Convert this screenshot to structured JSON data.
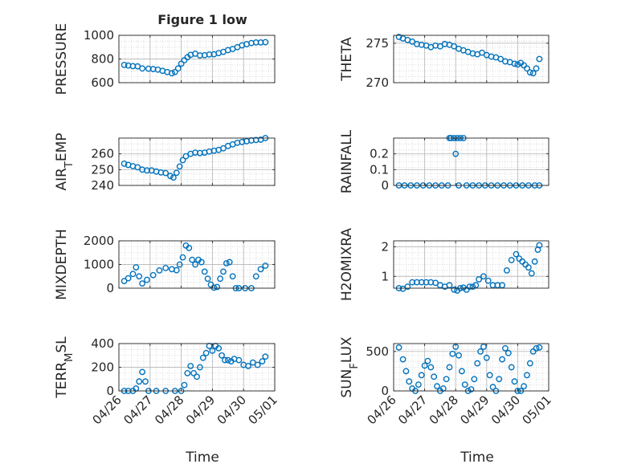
{
  "figure": {
    "title": "Figure 1 low",
    "xlabel": "Time",
    "x_ticks": [
      "04/26",
      "04/27",
      "04/28",
      "04/29",
      "04/30",
      "05/01"
    ],
    "marker_color": "#0072BD"
  },
  "chart_data": [
    {
      "type": "scatter",
      "title": "Figure 1 low",
      "xlabel": "",
      "ylabel": "PRESSURE",
      "xlim": [
        0,
        5
      ],
      "ylim": [
        600,
        1000
      ],
      "yticks": [
        600,
        800,
        1000
      ],
      "grid": true,
      "series": [
        {
          "x": [
            0.17,
            0.3,
            0.45,
            0.6,
            0.75,
            0.95,
            1.1,
            1.25,
            1.4,
            1.55,
            1.7,
            1.8,
            1.9,
            2.0,
            2.1,
            2.2,
            2.3,
            2.45,
            2.6,
            2.75,
            2.9,
            3.05,
            3.2,
            3.35,
            3.5,
            3.65,
            3.8,
            3.95,
            4.1,
            4.25,
            4.4,
            4.55,
            4.7
          ],
          "y": [
            750,
            745,
            740,
            738,
            720,
            718,
            715,
            710,
            700,
            690,
            680,
            690,
            720,
            760,
            790,
            815,
            835,
            845,
            830,
            832,
            838,
            840,
            850,
            860,
            875,
            885,
            900,
            915,
            925,
            935,
            940,
            940,
            942
          ]
        }
      ]
    },
    {
      "type": "scatter",
      "title": "",
      "xlabel": "",
      "ylabel": "THETA",
      "xlim": [
        0,
        5
      ],
      "ylim": [
        270,
        276
      ],
      "yticks": [
        270,
        275
      ],
      "grid": true,
      "series": [
        {
          "x": [
            0.17,
            0.3,
            0.45,
            0.6,
            0.75,
            0.9,
            1.05,
            1.2,
            1.35,
            1.5,
            1.65,
            1.8,
            1.95,
            2.1,
            2.25,
            2.4,
            2.55,
            2.7,
            2.85,
            3.0,
            3.15,
            3.3,
            3.45,
            3.6,
            3.75,
            3.9,
            4.0,
            4.1,
            4.2,
            4.3,
            4.4,
            4.5,
            4.6,
            4.7
          ],
          "y": [
            275.8,
            275.6,
            275.4,
            275.2,
            274.9,
            274.8,
            274.7,
            274.5,
            274.7,
            274.6,
            274.9,
            274.8,
            274.6,
            274.3,
            274.1,
            273.9,
            273.7,
            273.6,
            273.8,
            273.5,
            273.3,
            273.2,
            273.0,
            272.7,
            272.6,
            272.4,
            272.3,
            272.5,
            272.2,
            271.8,
            271.3,
            271.2,
            271.8,
            273.0
          ]
        }
      ]
    },
    {
      "type": "scatter",
      "title": "",
      "xlabel": "",
      "ylabel": "AIR_TEMP",
      "xlim": [
        0,
        5
      ],
      "ylim": [
        240,
        270
      ],
      "yticks": [
        240,
        250,
        260
      ],
      "grid": true,
      "series": [
        {
          "x": [
            0.17,
            0.3,
            0.45,
            0.6,
            0.75,
            0.9,
            1.05,
            1.2,
            1.35,
            1.5,
            1.65,
            1.75,
            1.85,
            1.95,
            2.05,
            2.15,
            2.3,
            2.45,
            2.6,
            2.75,
            2.9,
            3.05,
            3.2,
            3.35,
            3.5,
            3.65,
            3.8,
            3.95,
            4.1,
            4.25,
            4.4,
            4.55,
            4.7
          ],
          "y": [
            253.8,
            253.0,
            252.2,
            251.5,
            250.0,
            249.5,
            249.5,
            248.8,
            248.2,
            247.8,
            246.0,
            245.0,
            248.0,
            252.0,
            256.0,
            258.5,
            260.0,
            260.8,
            260.5,
            260.8,
            261.5,
            262.0,
            262.5,
            263.5,
            265.0,
            266.0,
            267.0,
            267.5,
            268.0,
            268.5,
            268.8,
            269.0,
            270.0
          ]
        }
      ]
    },
    {
      "type": "scatter",
      "title": "",
      "xlabel": "",
      "ylabel": "RAINFALL",
      "xlim": [
        0,
        5
      ],
      "ylim": [
        0,
        0.3
      ],
      "yticks": [
        0,
        0.1,
        0.2
      ],
      "grid": true,
      "series": [
        {
          "x": [
            0.17,
            0.35,
            0.55,
            0.75,
            0.95,
            1.15,
            1.35,
            1.55,
            1.75,
            1.8,
            1.85,
            1.95,
            2.0,
            2.05,
            2.1,
            2.15,
            2.25,
            2.35,
            2.55,
            2.75,
            2.95,
            3.15,
            3.35,
            3.55,
            3.75,
            3.95,
            4.15,
            4.35,
            4.55,
            4.7
          ],
          "y": [
            0,
            0,
            0,
            0,
            0,
            0,
            0,
            0,
            0,
            0.3,
            0.3,
            0.3,
            0.2,
            0.3,
            0,
            0.3,
            0.3,
            0,
            0,
            0,
            0,
            0,
            0,
            0,
            0,
            0,
            0,
            0,
            0,
            0
          ]
        }
      ]
    },
    {
      "type": "scatter",
      "title": "",
      "xlabel": "",
      "ylabel": "MIXDEPTH",
      "xlim": [
        0,
        5
      ],
      "ylim": [
        0,
        2000
      ],
      "yticks": [
        0,
        1000,
        2000
      ],
      "grid": true,
      "series": [
        {
          "x": [
            0.17,
            0.3,
            0.45,
            0.55,
            0.65,
            0.75,
            0.9,
            1.1,
            1.3,
            1.5,
            1.7,
            1.85,
            1.95,
            2.05,
            2.15,
            2.25,
            2.35,
            2.45,
            2.55,
            2.65,
            2.75,
            2.85,
            2.95,
            3.05,
            3.15,
            3.25,
            3.35,
            3.45,
            3.55,
            3.65,
            3.75,
            3.85,
            4.05,
            4.25,
            4.4,
            4.55,
            4.7
          ],
          "y": [
            300,
            420,
            600,
            880,
            500,
            200,
            350,
            550,
            750,
            850,
            800,
            760,
            1000,
            1300,
            1800,
            1700,
            1200,
            1000,
            1200,
            1100,
            700,
            400,
            150,
            20,
            50,
            400,
            700,
            1050,
            1100,
            500,
            0,
            0,
            0,
            0,
            500,
            800,
            950
          ]
        }
      ]
    },
    {
      "type": "scatter",
      "title": "",
      "xlabel": "",
      "ylabel": "H2OMIXRA",
      "xlim": [
        0,
        5
      ],
      "ylim": [
        0.6,
        2.2
      ],
      "yticks": [
        1,
        2
      ],
      "grid": true,
      "series": [
        {
          "x": [
            0.17,
            0.3,
            0.45,
            0.6,
            0.75,
            0.9,
            1.05,
            1.2,
            1.35,
            1.5,
            1.65,
            1.8,
            1.95,
            2.05,
            2.15,
            2.25,
            2.35,
            2.45,
            2.55,
            2.65,
            2.75,
            2.9,
            3.05,
            3.2,
            3.35,
            3.5,
            3.65,
            3.8,
            3.95,
            4.05,
            4.15,
            4.25,
            4.35,
            4.45,
            4.55,
            4.65,
            4.7
          ],
          "y": [
            0.6,
            0.58,
            0.65,
            0.8,
            0.8,
            0.8,
            0.8,
            0.8,
            0.78,
            0.7,
            0.65,
            0.7,
            0.55,
            0.52,
            0.6,
            0.62,
            0.55,
            0.65,
            0.65,
            0.7,
            0.9,
            1.0,
            0.85,
            0.7,
            0.7,
            0.7,
            1.2,
            1.55,
            1.75,
            1.6,
            1.5,
            1.4,
            1.3,
            1.1,
            1.5,
            1.9,
            2.05
          ]
        }
      ]
    },
    {
      "type": "scatter",
      "title": "",
      "xlabel": "",
      "ylabel": "TERR_MSL",
      "xlim": [
        0,
        5
      ],
      "ylim": [
        0,
        400
      ],
      "yticks": [
        0,
        200,
        400
      ],
      "grid": true,
      "series": [
        {
          "x": [
            0.17,
            0.3,
            0.45,
            0.55,
            0.65,
            0.75,
            0.85,
            0.95,
            1.2,
            1.5,
            1.8,
            2.0,
            2.1,
            2.2,
            2.3,
            2.4,
            2.5,
            2.6,
            2.7,
            2.8,
            2.9,
            3.0,
            3.1,
            3.2,
            3.3,
            3.4,
            3.5,
            3.6,
            3.7,
            3.85,
            4.0,
            4.15,
            4.3,
            4.45,
            4.6,
            4.7
          ],
          "y": [
            0,
            0,
            0,
            20,
            80,
            160,
            80,
            0,
            0,
            0,
            0,
            0,
            50,
            150,
            210,
            150,
            120,
            200,
            280,
            320,
            380,
            340,
            380,
            360,
            300,
            260,
            260,
            250,
            270,
            260,
            220,
            210,
            240,
            220,
            250,
            290
          ]
        }
      ]
    },
    {
      "type": "scatter",
      "title": "",
      "xlabel": "",
      "ylabel": "SUN_FLUX",
      "xlim": [
        0,
        5
      ],
      "ylim": [
        0,
        600
      ],
      "yticks": [
        0,
        500
      ],
      "grid": true,
      "series": [
        {
          "x": [
            0.17,
            0.3,
            0.4,
            0.5,
            0.6,
            0.7,
            0.8,
            0.9,
            1.0,
            1.1,
            1.2,
            1.3,
            1.4,
            1.5,
            1.6,
            1.7,
            1.8,
            1.9,
            2.0,
            2.1,
            2.2,
            2.3,
            2.4,
            2.5,
            2.6,
            2.7,
            2.8,
            2.9,
            3.0,
            3.1,
            3.2,
            3.3,
            3.4,
            3.5,
            3.6,
            3.7,
            3.8,
            3.9,
            4.0,
            4.1,
            4.2,
            4.3,
            4.4,
            4.5,
            4.6,
            4.7
          ],
          "y": [
            550,
            400,
            250,
            120,
            30,
            0,
            80,
            200,
            320,
            380,
            300,
            180,
            60,
            0,
            30,
            150,
            300,
            470,
            560,
            450,
            250,
            80,
            0,
            20,
            150,
            350,
            500,
            560,
            420,
            200,
            50,
            0,
            150,
            400,
            540,
            480,
            300,
            120,
            0,
            0,
            60,
            200,
            350,
            500,
            540,
            550
          ]
        }
      ]
    }
  ]
}
